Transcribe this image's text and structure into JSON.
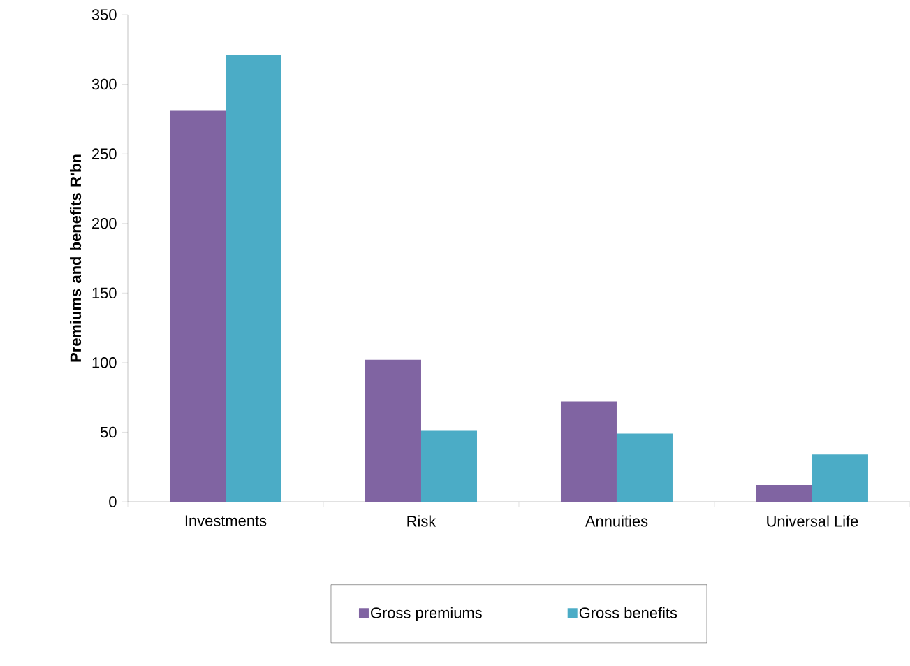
{
  "chart_data": {
    "type": "bar",
    "ylabel": "Premiums and benefits R'bn",
    "categories": [
      "Investments",
      "Risk",
      "Annuities",
      "Universal Life"
    ],
    "series": [
      {
        "name": "Gross premiums",
        "color": "#8064a2",
        "values": [
          281,
          102,
          72,
          12
        ]
      },
      {
        "name": "Gross benefits",
        "color": "#4bacc6",
        "values": [
          321,
          51,
          49,
          34
        ]
      }
    ],
    "ylim": [
      0,
      350
    ],
    "yticks": [
      0,
      50,
      100,
      150,
      200,
      250,
      300,
      350
    ],
    "grid": false,
    "legend": "bottom"
  }
}
